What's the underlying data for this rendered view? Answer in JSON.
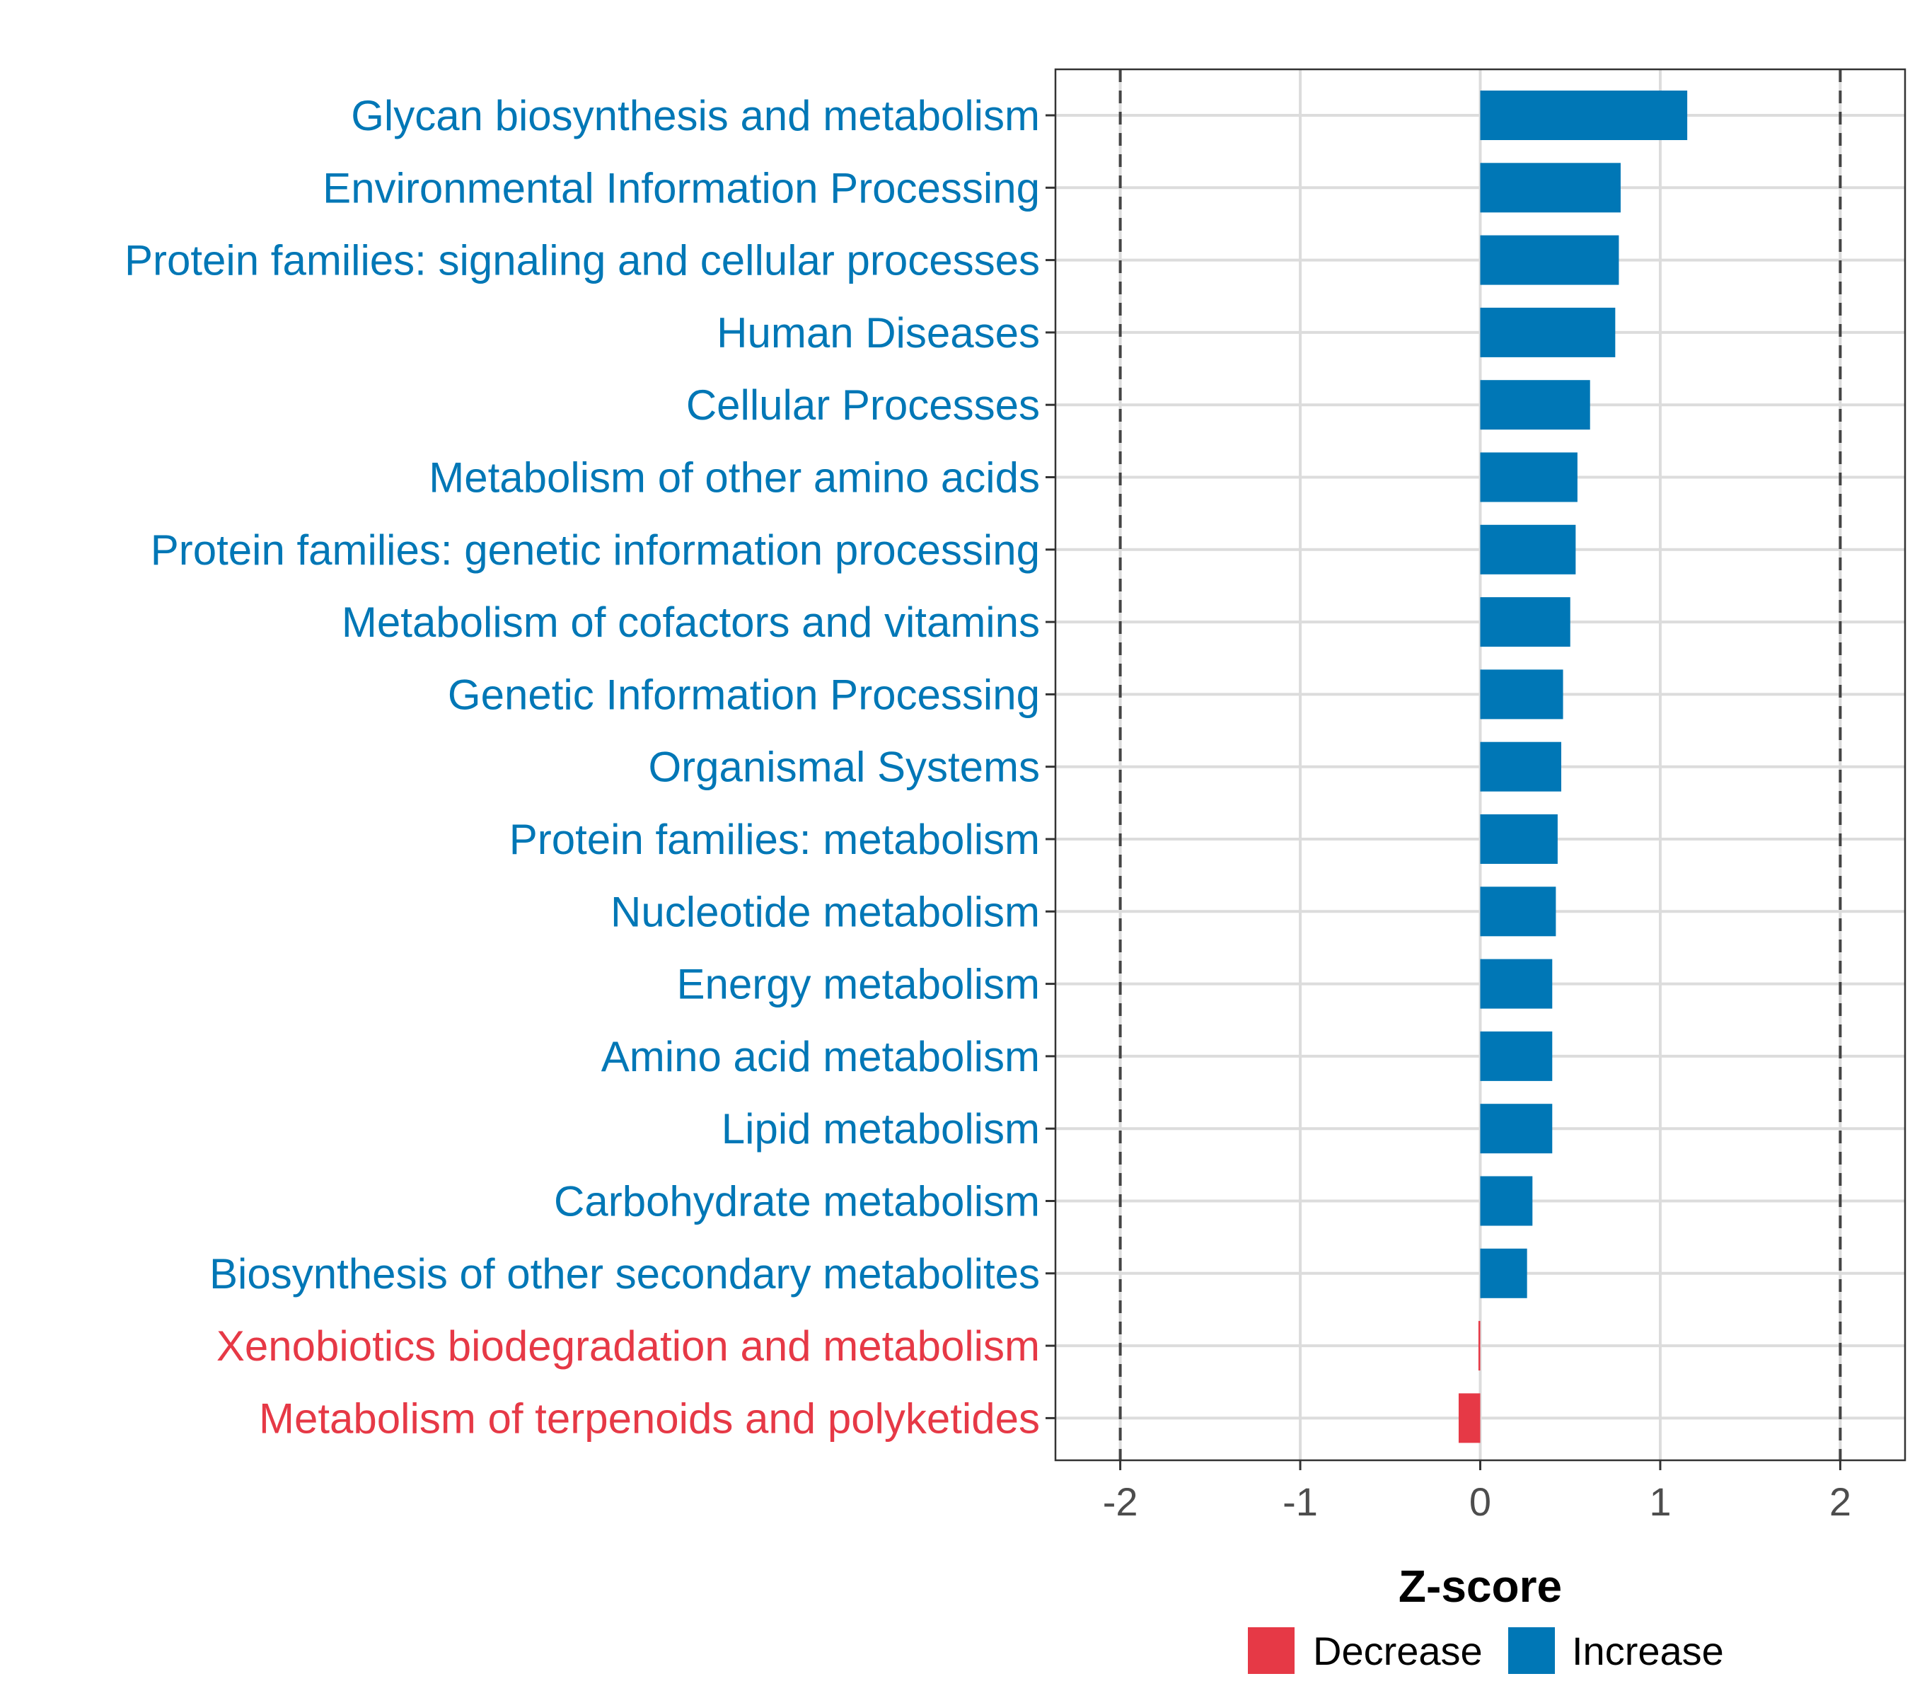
{
  "chart_data": {
    "type": "bar",
    "orientation": "horizontal",
    "xlabel": "Z-score",
    "xlim": [
      -2.36,
      2.36
    ],
    "x_ticks": [
      -2,
      -1,
      0,
      1,
      2
    ],
    "x_tick_labels": [
      "-2",
      "-1",
      "0",
      "1",
      "2"
    ],
    "reference_lines": [
      -2,
      2
    ],
    "grid": true,
    "legend_position": "bottom",
    "categories": [
      "Glycan biosynthesis and metabolism",
      "Environmental Information Processing",
      "Protein families: signaling and cellular processes",
      "Human Diseases",
      "Cellular Processes",
      "Metabolism of other amino acids",
      "Protein families: genetic information processing",
      "Metabolism of cofactors and vitamins",
      "Genetic Information Processing",
      "Organismal Systems",
      "Protein families: metabolism",
      "Nucleotide metabolism",
      "Energy metabolism",
      "Amino acid metabolism",
      "Lipid metabolism",
      "Carbohydrate metabolism",
      "Biosynthesis of other secondary metabolites",
      "Xenobiotics biodegradation and metabolism",
      "Metabolism of terpenoids and polyketides"
    ],
    "values": [
      1.15,
      0.78,
      0.77,
      0.75,
      0.61,
      0.54,
      0.53,
      0.5,
      0.46,
      0.45,
      0.43,
      0.42,
      0.4,
      0.4,
      0.4,
      0.29,
      0.26,
      -0.01,
      -0.12
    ],
    "groups": [
      "Increase",
      "Increase",
      "Increase",
      "Increase",
      "Increase",
      "Increase",
      "Increase",
      "Increase",
      "Increase",
      "Increase",
      "Increase",
      "Increase",
      "Increase",
      "Increase",
      "Increase",
      "Increase",
      "Increase",
      "Decrease",
      "Decrease"
    ],
    "legend": [
      {
        "name": "Decrease",
        "color": "#e63946"
      },
      {
        "name": "Increase",
        "color": "#0077b6"
      }
    ]
  }
}
